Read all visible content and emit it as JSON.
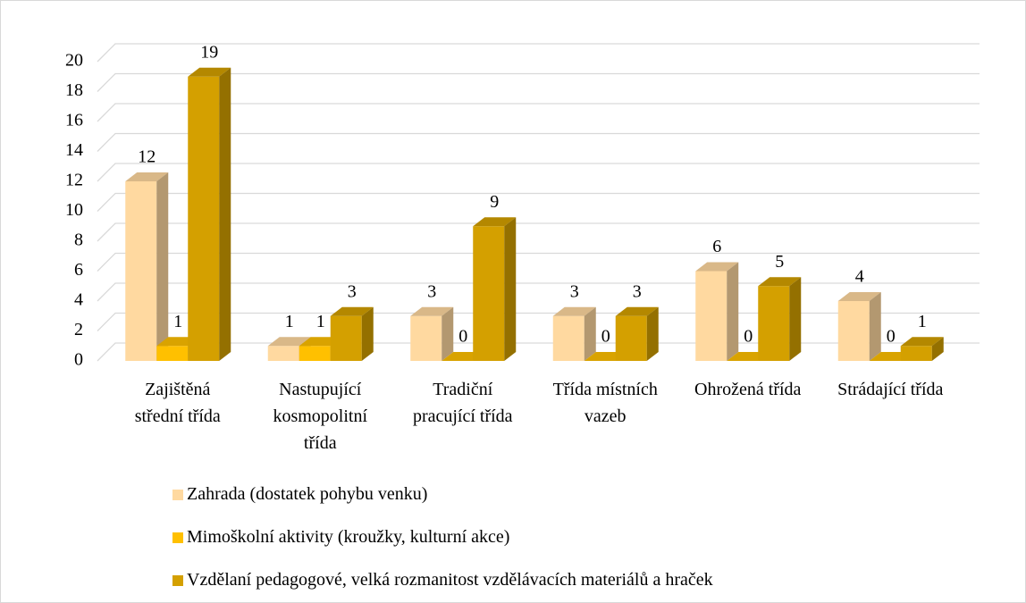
{
  "chart_data": {
    "type": "bar3d",
    "categories": [
      "Zajištěná střední třída",
      "Nastupující kosmopolitní třída",
      "Tradiční pracující třída",
      "Třída místních vazeb",
      "Ohrožená třída",
      "Strádající třída"
    ],
    "series": [
      {
        "name": "Zahrada (dostatek pohybu venku)",
        "color": "#FFD9A0",
        "values": [
          12,
          1,
          3,
          3,
          6,
          4
        ]
      },
      {
        "name": "Mimoškolní aktivity (kroužky, kulturní akce)",
        "color": "#FFC000",
        "values": [
          1,
          1,
          0,
          0,
          0,
          0
        ]
      },
      {
        "name": "Vzdělaní pedagogové, velká rozmanitost vzdělávacích materiálů a hraček",
        "color": "#D4A000",
        "values": [
          19,
          3,
          9,
          3,
          5,
          1
        ]
      }
    ],
    "ylim": [
      0,
      20
    ],
    "yticks": [
      0,
      2,
      4,
      6,
      8,
      10,
      12,
      14,
      16,
      18,
      20
    ],
    "grid": true,
    "legend": "bottom"
  }
}
